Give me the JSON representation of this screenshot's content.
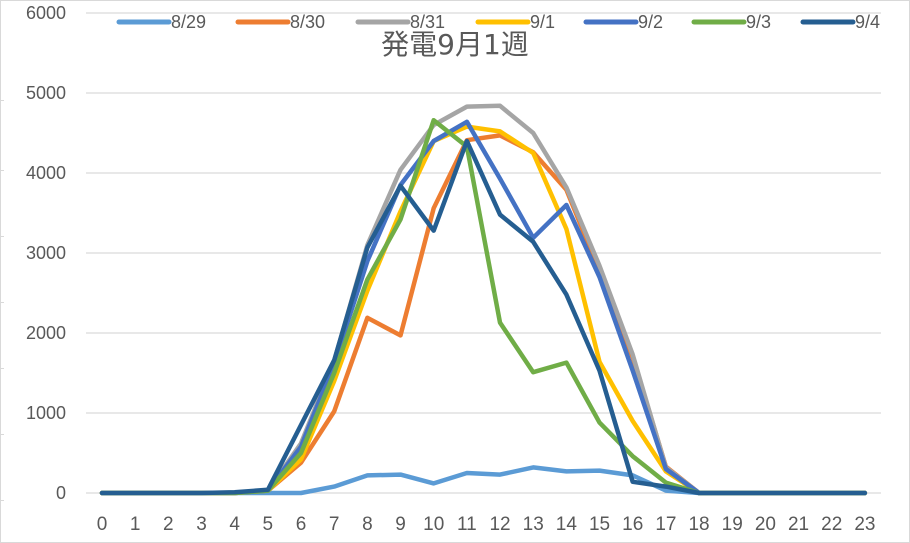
{
  "chart_data": {
    "type": "line",
    "title": "発電9月1週",
    "xlabel": "",
    "ylabel": "",
    "ylim": [
      0,
      6000
    ],
    "yticks": [
      0,
      1000,
      2000,
      3000,
      4000,
      5000,
      6000
    ],
    "grid": true,
    "legend_position": "top",
    "x": [
      0,
      1,
      2,
      3,
      4,
      5,
      6,
      7,
      8,
      9,
      10,
      11,
      12,
      13,
      14,
      15,
      16,
      17,
      18,
      19,
      20,
      21,
      22,
      23
    ],
    "series": [
      {
        "name": "8/29",
        "color": "#5b9bd5",
        "values": [
          0,
          0,
          0,
          0,
          0,
          0,
          0,
          80,
          220,
          230,
          120,
          250,
          230,
          320,
          270,
          280,
          220,
          30,
          0,
          0,
          0,
          0,
          0,
          0
        ]
      },
      {
        "name": "8/30",
        "color": "#ed7d31",
        "values": [
          0,
          0,
          0,
          0,
          0,
          30,
          380,
          1020,
          2190,
          1970,
          3560,
          4410,
          4470,
          4260,
          3790,
          2770,
          1700,
          330,
          0,
          0,
          0,
          0,
          0,
          0
        ]
      },
      {
        "name": "8/31",
        "color": "#a5a5a5",
        "values": [
          0,
          0,
          0,
          0,
          0,
          30,
          620,
          1650,
          3100,
          4040,
          4600,
          4830,
          4840,
          4500,
          3820,
          2840,
          1730,
          320,
          0,
          0,
          0,
          0,
          0,
          0
        ]
      },
      {
        "name": "9/1",
        "color": "#ffc000",
        "values": [
          0,
          0,
          0,
          0,
          0,
          30,
          420,
          1400,
          2530,
          3520,
          4400,
          4580,
          4520,
          4250,
          3300,
          1640,
          900,
          270,
          0,
          0,
          0,
          0,
          0,
          0
        ]
      },
      {
        "name": "9/2",
        "color": "#4472c4",
        "values": [
          0,
          0,
          0,
          0,
          0,
          30,
          580,
          1620,
          2900,
          3850,
          4400,
          4640,
          3930,
          3190,
          3600,
          2700,
          1530,
          300,
          0,
          0,
          0,
          0,
          0,
          0
        ]
      },
      {
        "name": "9/3",
        "color": "#70ad47",
        "values": [
          0,
          0,
          0,
          0,
          0,
          30,
          500,
          1500,
          2670,
          3420,
          4660,
          4330,
          2130,
          1510,
          1630,
          880,
          460,
          130,
          0,
          0,
          0,
          0,
          0,
          0
        ]
      },
      {
        "name": "9/4",
        "color": "#255e91",
        "values": [
          0,
          0,
          0,
          0,
          10,
          40,
          850,
          1660,
          3070,
          3840,
          3280,
          4400,
          3480,
          3140,
          2480,
          1530,
          140,
          80,
          0,
          0,
          0,
          0,
          0,
          0
        ]
      }
    ]
  },
  "chart": {
    "title": "発電9月1週",
    "y_ticks": [
      "0",
      "1000",
      "2000",
      "3000",
      "4000",
      "5000",
      "6000"
    ],
    "x_ticks": [
      "0",
      "1",
      "2",
      "3",
      "4",
      "5",
      "6",
      "7",
      "8",
      "9",
      "10",
      "11",
      "12",
      "13",
      "14",
      "15",
      "16",
      "17",
      "18",
      "19",
      "20",
      "21",
      "22",
      "23"
    ],
    "legend": [
      "8/29",
      "8/30",
      "8/31",
      "9/1",
      "9/2",
      "9/3",
      "9/4"
    ]
  }
}
